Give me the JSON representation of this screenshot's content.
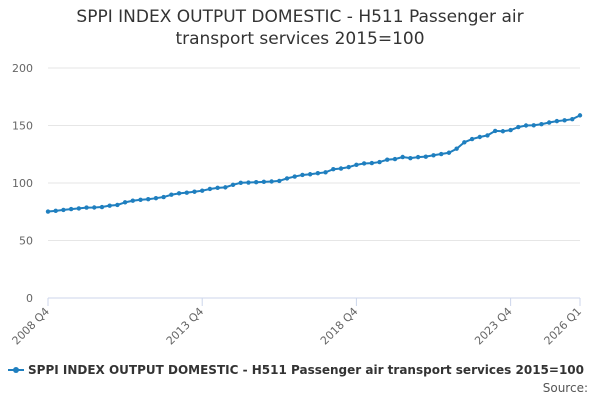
{
  "chart_data": {
    "type": "line",
    "title": "SPPI INDEX OUTPUT DOMESTIC - H511 Passenger air transport services 2015=100",
    "title_lines": [
      "SPPI INDEX OUTPUT DOMESTIC - H511 Passenger air",
      "transport services 2015=100"
    ],
    "xlabel": "",
    "ylabel": "",
    "ylim": [
      0,
      200
    ],
    "yticks": [
      0,
      50,
      100,
      150,
      200
    ],
    "x_tick_labels": [
      {
        "index": 0,
        "label": "2008 Q4"
      },
      {
        "index": 20,
        "label": "2013 Q4"
      },
      {
        "index": 40,
        "label": "2018 Q4"
      },
      {
        "index": 60,
        "label": "2023 Q4"
      },
      {
        "index": 69,
        "label": "2026 Q1"
      }
    ],
    "grid": true,
    "legend_position": "bottom",
    "color": "#1f7fbf",
    "x": [
      "2008 Q4",
      "2009 Q1",
      "2009 Q2",
      "2009 Q3",
      "2009 Q4",
      "2010 Q1",
      "2010 Q2",
      "2010 Q3",
      "2010 Q4",
      "2011 Q1",
      "2011 Q2",
      "2011 Q3",
      "2011 Q4",
      "2012 Q1",
      "2012 Q2",
      "2012 Q3",
      "2012 Q4",
      "2013 Q1",
      "2013 Q2",
      "2013 Q3",
      "2013 Q4",
      "2014 Q1",
      "2014 Q2",
      "2014 Q3",
      "2014 Q4",
      "2015 Q1",
      "2015 Q2",
      "2015 Q3",
      "2015 Q4",
      "2016 Q1",
      "2016 Q2",
      "2016 Q3",
      "2016 Q4",
      "2017 Q1",
      "2017 Q2",
      "2017 Q3",
      "2017 Q4",
      "2018 Q1",
      "2018 Q2",
      "2018 Q3",
      "2018 Q4",
      "2019 Q1",
      "2019 Q2",
      "2019 Q3",
      "2019 Q4",
      "2020 Q1",
      "2020 Q2",
      "2020 Q3",
      "2020 Q4",
      "2021 Q1",
      "2021 Q2",
      "2021 Q3",
      "2021 Q4",
      "2022 Q1",
      "2022 Q2",
      "2022 Q3",
      "2022 Q4",
      "2023 Q1",
      "2023 Q2",
      "2023 Q3",
      "2023 Q4",
      "2024 Q1",
      "2024 Q2",
      "2024 Q3",
      "2024 Q4",
      "2025 Q1",
      "2025 Q2",
      "2025 Q3",
      "2025 Q4",
      "2026 Q1"
    ],
    "series": [
      {
        "name": "SPPI INDEX OUTPUT DOMESTIC - H511 Passenger air transport services 2015=100",
        "values": [
          75.2,
          75.8,
          76.6,
          77.3,
          77.9,
          78.6,
          78.7,
          79.1,
          80.3,
          80.9,
          83.2,
          84.6,
          85.4,
          85.9,
          86.8,
          87.8,
          89.8,
          91.0,
          91.6,
          92.4,
          93.3,
          94.8,
          95.8,
          96.2,
          98.4,
          100.2,
          100.4,
          100.7,
          101.0,
          101.3,
          101.8,
          104.0,
          105.6,
          107.0,
          107.6,
          108.5,
          109.3,
          112.0,
          112.6,
          113.8,
          115.8,
          117.0,
          117.3,
          118.2,
          120.3,
          120.8,
          122.6,
          121.6,
          122.5,
          122.9,
          124.1,
          125.2,
          126.3,
          129.8,
          135.4,
          138.2,
          140.0,
          141.4,
          145.3,
          145.0,
          146.0,
          148.6,
          150.0,
          150.2,
          151.1,
          152.6,
          153.8,
          154.5,
          155.5,
          158.8
        ]
      }
    ]
  },
  "legend_label": "SPPI INDEX OUTPUT DOMESTIC - H511 Passenger air transport services 2015=100",
  "source_label": "Source:"
}
